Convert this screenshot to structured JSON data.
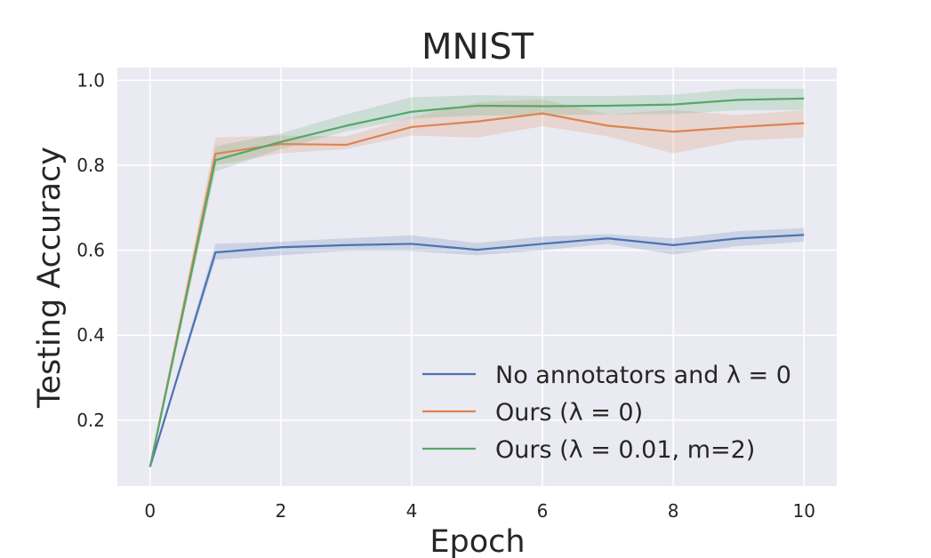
{
  "chart_data": {
    "type": "line",
    "title": "MNIST",
    "xlabel": "Epoch",
    "ylabel": "Testing Accuracy",
    "xlim": [
      -0.5,
      10.5
    ],
    "ylim": [
      0.045,
      1.03
    ],
    "x_ticks": [
      0,
      2,
      4,
      6,
      8,
      10
    ],
    "y_ticks": [
      0.2,
      0.4,
      0.6,
      0.8,
      1.0
    ],
    "x_tick_labels": [
      "0",
      "2",
      "4",
      "6",
      "8",
      "10"
    ],
    "y_tick_labels": [
      "0.2",
      "0.4",
      "0.6",
      "0.8",
      "1.0"
    ],
    "grid": true,
    "legend_position": "lower-right",
    "x": [
      0,
      1,
      2,
      3,
      4,
      5,
      6,
      7,
      8,
      9,
      10
    ],
    "series": [
      {
        "name": "No annotators and λ = 0",
        "color": "#4c72b0",
        "values": [
          0.09,
          0.595,
          0.607,
          0.612,
          0.615,
          0.601,
          0.615,
          0.628,
          0.612,
          0.628,
          0.636
        ],
        "upper": [
          0.09,
          0.615,
          0.62,
          0.628,
          0.635,
          0.617,
          0.632,
          0.638,
          0.628,
          0.645,
          0.652
        ],
        "lower": [
          0.09,
          0.578,
          0.588,
          0.598,
          0.598,
          0.588,
          0.6,
          0.615,
          0.59,
          0.61,
          0.62
        ]
      },
      {
        "name": "Ours (λ = 0)",
        "color": "#dd8452",
        "values": [
          0.09,
          0.827,
          0.85,
          0.848,
          0.89,
          0.903,
          0.922,
          0.893,
          0.879,
          0.89,
          0.899
        ],
        "upper": [
          0.09,
          0.865,
          0.87,
          0.868,
          0.913,
          0.948,
          0.955,
          0.92,
          0.93,
          0.918,
          0.93
        ],
        "lower": [
          0.09,
          0.8,
          0.828,
          0.838,
          0.87,
          0.865,
          0.892,
          0.868,
          0.828,
          0.858,
          0.865
        ]
      },
      {
        "name": "Ours (λ = 0.01, m=2)",
        "color": "#55a868",
        "values": [
          0.09,
          0.812,
          0.855,
          0.893,
          0.926,
          0.94,
          0.939,
          0.94,
          0.943,
          0.954,
          0.957
        ],
        "upper": [
          0.09,
          0.845,
          0.875,
          0.92,
          0.96,
          0.965,
          0.963,
          0.963,
          0.966,
          0.98,
          0.98
        ],
        "lower": [
          0.09,
          0.785,
          0.838,
          0.88,
          0.91,
          0.917,
          0.918,
          0.92,
          0.92,
          0.93,
          0.93
        ]
      }
    ]
  }
}
